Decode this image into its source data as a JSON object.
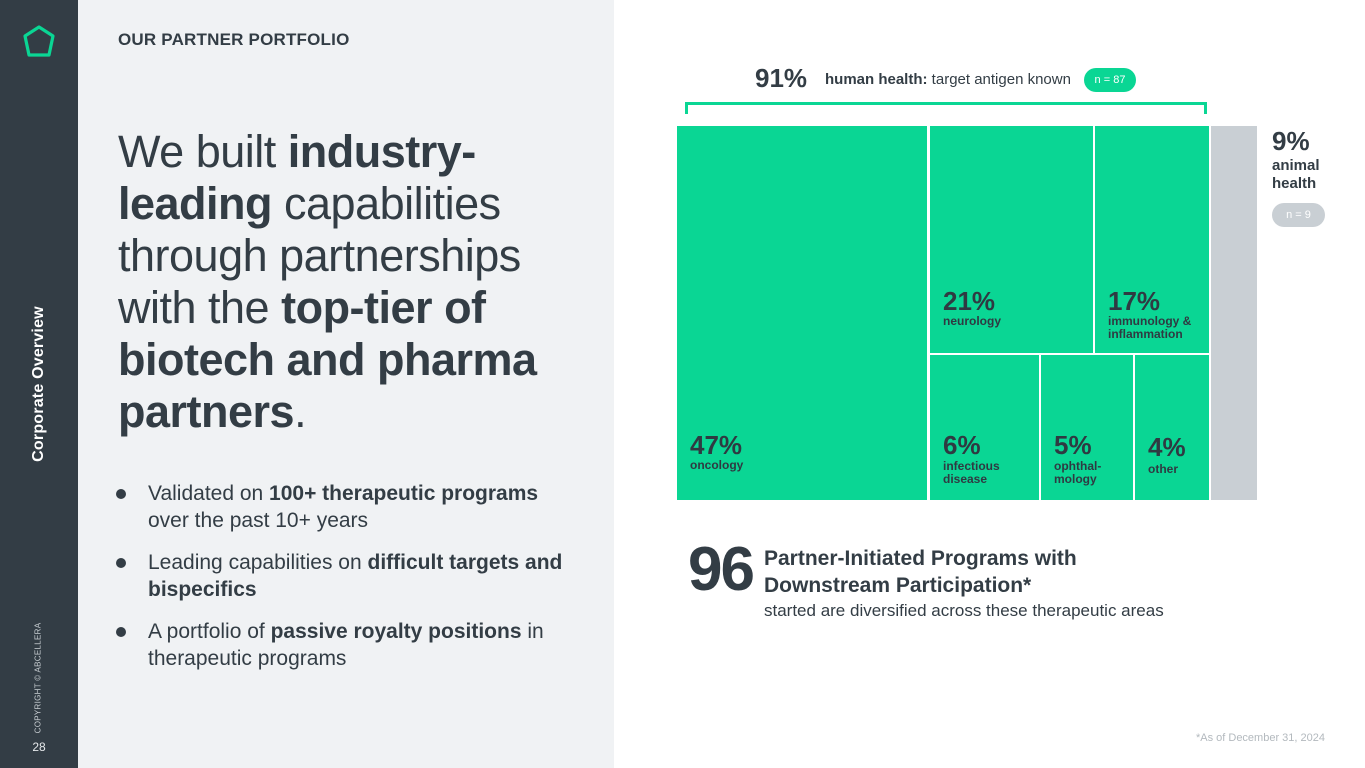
{
  "sidebar": {
    "section": "Corporate Overview",
    "copyright": "COPYRIGHT © ABCELLERA",
    "page_number": "28"
  },
  "left": {
    "section_title": "OUR PARTNER PORTFOLIO",
    "headline": {
      "p1": "We built ",
      "b1": "industry-leading",
      "p2": " capabilities through partnerships with the ",
      "b2": "top-tier of biotech and pharma partners",
      "p3": "."
    },
    "bullets": [
      {
        "pre": "Validated on ",
        "bold": "100+ therapeutic programs",
        "post": " over the past 10+ years"
      },
      {
        "pre": "Leading capabilities on ",
        "bold": "difficult targets and bispecifics",
        "post": ""
      },
      {
        "pre": "A portfolio of ",
        "bold": "passive royalty positions",
        "post": " in therapeutic programs"
      }
    ]
  },
  "chart_data": {
    "type": "treemap",
    "groups": [
      {
        "name": "human health",
        "percent_label": "91%",
        "label_bold": "human health:",
        "label_rest": " target antigen known",
        "n_label": "n = 87",
        "areas": [
          {
            "name": "oncology",
            "percent": 47,
            "label": "47%",
            "caption": "oncology"
          },
          {
            "name": "neurology",
            "percent": 21,
            "label": "21%",
            "caption": "neurology"
          },
          {
            "name": "immunology & inflammation",
            "percent": 17,
            "label": "17%",
            "caption": "immunology & inflammation"
          },
          {
            "name": "infectious disease",
            "percent": 6,
            "label": "6%",
            "caption": "infectious disease"
          },
          {
            "name": "ophthalmology",
            "percent": 5,
            "label": "5%",
            "caption": "ophthal- mology"
          },
          {
            "name": "other",
            "percent": 4,
            "label": "4%",
            "caption": "other"
          }
        ]
      },
      {
        "name": "animal health",
        "percent": 9,
        "percent_label": "9%",
        "caption": "animal health",
        "n_label": "n = 9"
      }
    ]
  },
  "summary": {
    "count": "96",
    "title": "Partner-Initiated Programs with Downstream Participation*",
    "subtitle": "started are diversified across these therapeutic areas"
  },
  "footnote": "*As of December 31, 2024",
  "colors": {
    "accent": "#0ad694",
    "dark": "#333d45",
    "gray": "#c9cfd4",
    "panel": "#f0f2f4"
  },
  "icons": {
    "logo": "hexagon-logo-icon",
    "bullet": "bullet-dot-icon"
  }
}
